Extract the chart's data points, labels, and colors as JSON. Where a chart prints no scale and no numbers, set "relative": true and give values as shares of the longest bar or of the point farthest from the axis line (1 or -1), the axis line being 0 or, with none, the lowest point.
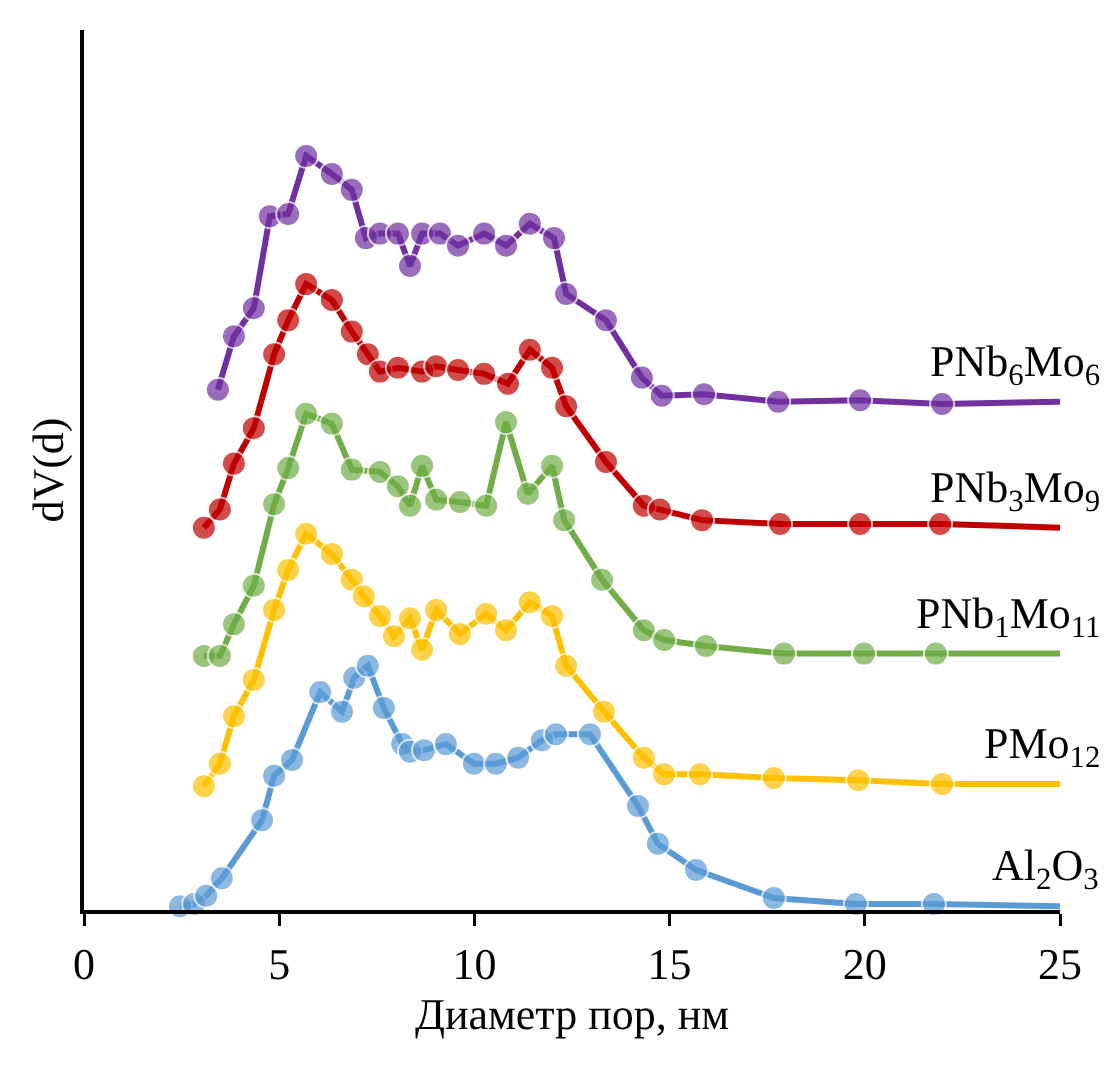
{
  "chart_data": {
    "type": "line",
    "relative": true,
    "xlabel": "Диаметр пор, нм",
    "ylabel": "dV(d)",
    "xlim": [
      0,
      25
    ],
    "xticks": [
      0,
      5,
      10,
      15,
      20,
      25
    ],
    "grid": false,
    "legend": false,
    "marker": "circle",
    "line_style": "solid",
    "series": [
      {
        "name": "PNb$_{6}$Mo$_{6}$",
        "color": "#7030a0",
        "x": [
          3.43,
          3.84,
          4.35,
          4.76,
          5.23,
          5.69,
          6.35,
          6.86,
          7.22,
          7.58,
          8.04,
          8.35,
          8.66,
          9.12,
          9.58,
          10.25,
          10.81,
          11.42,
          12.04,
          12.35,
          13.37,
          14.29,
          14.8,
          15.88,
          17.78,
          19.88,
          21.98,
          25
        ],
        "values": [
          0.69,
          0.761,
          0.798,
          0.92,
          0.923,
          1.0,
          0.976,
          0.955,
          0.891,
          0.897,
          0.897,
          0.854,
          0.897,
          0.897,
          0.881,
          0.897,
          0.881,
          0.91,
          0.891,
          0.817,
          0.782,
          0.706,
          0.682,
          0.684,
          0.674,
          0.676,
          0.671,
          0.674
        ]
      },
      {
        "name": "PNb$_{3}$Mo$_{9}$",
        "color": "#c00000",
        "x": [
          3.07,
          3.48,
          3.84,
          4.35,
          4.87,
          5.23,
          5.69,
          6.35,
          6.86,
          7.27,
          7.58,
          8.04,
          8.66,
          9.02,
          9.58,
          10.25,
          10.86,
          11.42,
          11.99,
          12.35,
          13.37,
          14.34,
          14.75,
          15.83,
          17.83,
          19.88,
          21.93,
          25
        ],
        "values": [
          0.507,
          0.531,
          0.592,
          0.639,
          0.737,
          0.782,
          0.83,
          0.809,
          0.767,
          0.737,
          0.714,
          0.719,
          0.714,
          0.721,
          0.716,
          0.711,
          0.698,
          0.743,
          0.719,
          0.668,
          0.594,
          0.536,
          0.531,
          0.517,
          0.512,
          0.512,
          0.512,
          0.507
        ]
      },
      {
        "name": "PNb$_{1}$Mo$_{11}$",
        "color": "#70ad47",
        "x": [
          3.07,
          3.48,
          3.84,
          4.35,
          4.87,
          5.23,
          5.69,
          6.35,
          6.86,
          7.58,
          8.04,
          8.35,
          8.66,
          9.02,
          9.63,
          10.3,
          10.81,
          11.37,
          11.99,
          12.3,
          13.27,
          14.34,
          14.86,
          15.93,
          17.93,
          19.98,
          21.82,
          25
        ],
        "values": [
          0.337,
          0.337,
          0.379,
          0.43,
          0.538,
          0.586,
          0.658,
          0.645,
          0.584,
          0.581,
          0.562,
          0.536,
          0.589,
          0.544,
          0.541,
          0.536,
          0.647,
          0.552,
          0.589,
          0.517,
          0.438,
          0.371,
          0.358,
          0.35,
          0.34,
          0.34,
          0.34,
          0.34
        ]
      },
      {
        "name": "PMo$_{12}$",
        "color": "#ffc000",
        "x": [
          3.07,
          3.48,
          3.84,
          4.35,
          4.87,
          5.23,
          5.69,
          6.35,
          6.86,
          7.17,
          7.58,
          7.94,
          8.35,
          8.66,
          9.02,
          9.63,
          10.3,
          10.81,
          11.42,
          11.99,
          12.35,
          13.32,
          14.34,
          14.86,
          15.78,
          17.67,
          19.83,
          21.98,
          25
        ],
        "values": [
          0.164,
          0.194,
          0.257,
          0.305,
          0.398,
          0.451,
          0.499,
          0.472,
          0.438,
          0.416,
          0.39,
          0.363,
          0.387,
          0.345,
          0.398,
          0.366,
          0.393,
          0.371,
          0.408,
          0.39,
          0.324,
          0.263,
          0.202,
          0.18,
          0.18,
          0.175,
          0.172,
          0.167,
          0.167
        ]
      },
      {
        "name": "Al$_{2}$O$_{3}$",
        "color": "#5b9bd5",
        "x": [
          2.46,
          2.82,
          3.13,
          3.53,
          4.56,
          4.87,
          5.33,
          6.05,
          6.61,
          6.92,
          7.27,
          7.68,
          8.15,
          8.35,
          8.71,
          9.27,
          9.99,
          10.55,
          11.12,
          11.73,
          12.09,
          12.96,
          14.19,
          14.7,
          15.68,
          17.67,
          19.77,
          21.77,
          25
        ],
        "values": [
          0.005,
          0.008,
          0.019,
          0.042,
          0.119,
          0.178,
          0.199,
          0.289,
          0.263,
          0.308,
          0.324,
          0.268,
          0.22,
          0.21,
          0.212,
          0.22,
          0.194,
          0.194,
          0.202,
          0.225,
          0.233,
          0.233,
          0.138,
          0.088,
          0.053,
          0.016,
          0.008,
          0.008,
          0.005
        ]
      }
    ]
  }
}
